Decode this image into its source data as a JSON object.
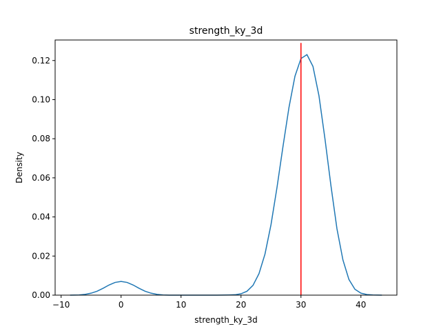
{
  "chart_data": {
    "type": "line",
    "title": "strength_ky_3d",
    "xlabel": "strength_ky_3d",
    "ylabel": "Density",
    "xlim": [
      -11,
      46
    ],
    "ylim": [
      0,
      0.1305
    ],
    "xticks": [
      -10,
      0,
      10,
      20,
      30,
      40
    ],
    "yticks": [
      0.0,
      0.02,
      0.04,
      0.06,
      0.08,
      0.1,
      0.12
    ],
    "grid": false,
    "series": [
      {
        "color": "#1f77b4",
        "x": [
          -8.5,
          -7,
          -6,
          -5,
          -4,
          -3,
          -2,
          -1,
          0,
          1,
          2,
          3,
          4,
          5,
          6,
          7,
          8,
          9,
          10,
          12,
          14,
          16,
          18,
          19,
          20,
          21,
          22,
          23,
          24,
          25,
          26,
          27,
          28,
          29,
          30,
          31,
          32,
          33,
          34,
          35,
          36,
          37,
          38,
          39,
          40,
          41,
          42,
          43.5
        ],
        "y": [
          0.0,
          0.0001,
          0.0004,
          0.001,
          0.002,
          0.0035,
          0.0052,
          0.0065,
          0.007,
          0.0065,
          0.0052,
          0.0035,
          0.002,
          0.001,
          0.0004,
          0.0001,
          0.0,
          0.0,
          0.0,
          0.0,
          0.0,
          0.0,
          0.0001,
          0.0002,
          0.0007,
          0.002,
          0.005,
          0.011,
          0.021,
          0.036,
          0.055,
          0.076,
          0.096,
          0.112,
          0.121,
          0.123,
          0.117,
          0.102,
          0.08,
          0.056,
          0.034,
          0.018,
          0.008,
          0.003,
          0.001,
          0.0003,
          0.0001,
          0.0
        ]
      }
    ],
    "vline": {
      "x": 30,
      "y_top": 0.129,
      "color": "#ff0000"
    }
  }
}
